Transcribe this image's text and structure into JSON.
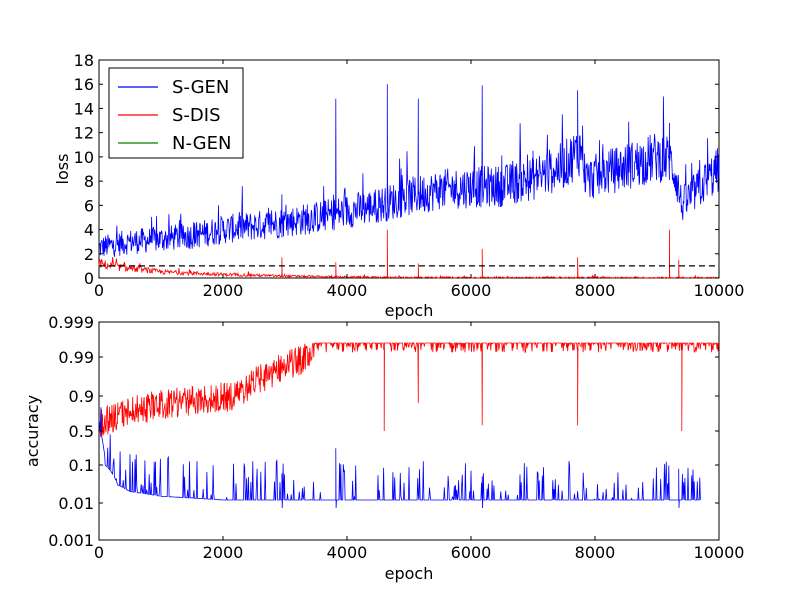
{
  "colors": {
    "s_gen": "#0000ff",
    "s_dis": "#ff0000",
    "n_gen": "#008000",
    "reference": "#000000"
  },
  "chart_data": [
    {
      "type": "line",
      "xlabel": "epoch",
      "ylabel": "loss",
      "xlim": [
        0,
        10000
      ],
      "ylim": [
        0,
        18
      ],
      "xticks": [
        "0",
        "2000",
        "4000",
        "6000",
        "8000",
        "10000"
      ],
      "yticks": [
        "0",
        "2",
        "4",
        "6",
        "8",
        "10",
        "12",
        "14",
        "16",
        "18"
      ],
      "grid": false,
      "legend_position": "top-left",
      "series": [
        {
          "name": "S-GEN",
          "color": "#0000ff",
          "x": [
            0,
            500,
            1000,
            1500,
            2000,
            2500,
            3000,
            3500,
            4000,
            4500,
            5000,
            5500,
            6000,
            6500,
            7000,
            7500,
            7800,
            7850,
            8000,
            8500,
            9000,
            9200,
            9300,
            9400,
            10000
          ],
          "y": [
            2.5,
            3.0,
            3.2,
            3.5,
            4.0,
            4.3,
            4.6,
            5.0,
            5.5,
            6.0,
            6.7,
            7.3,
            7.5,
            7.6,
            8.2,
            9.3,
            10.8,
            8.0,
            8.4,
            9.2,
            10.0,
            9.8,
            8.5,
            6.0,
            9.0
          ],
          "spikes": [
            {
              "x": 2950,
              "y": 6.9
            },
            {
              "x": 3820,
              "y": 14.8
            },
            {
              "x": 4650,
              "y": 16.0
            },
            {
              "x": 5150,
              "y": 14.8
            },
            {
              "x": 6180,
              "y": 15.9
            },
            {
              "x": 7000,
              "y": 10.5
            },
            {
              "x": 7720,
              "y": 15.5
            },
            {
              "x": 9200,
              "y": 12.8
            }
          ]
        },
        {
          "name": "S-DIS",
          "color": "#ff0000",
          "x": [
            0,
            300,
            1000,
            2000,
            3000,
            4000,
            5000,
            6000,
            7000,
            8000,
            9000,
            10000
          ],
          "y": [
            1.2,
            0.9,
            0.5,
            0.3,
            0.15,
            0.08,
            0.05,
            0.04,
            0.03,
            0.03,
            0.02,
            0.02
          ],
          "spikes": [
            {
              "x": 2950,
              "y": 1.7
            },
            {
              "x": 3820,
              "y": 1.3
            },
            {
              "x": 4650,
              "y": 4.0
            },
            {
              "x": 5150,
              "y": 1.2
            },
            {
              "x": 6180,
              "y": 2.4
            },
            {
              "x": 7720,
              "y": 1.7
            },
            {
              "x": 9200,
              "y": 4.0
            },
            {
              "x": 9350,
              "y": 1.5
            }
          ]
        },
        {
          "name": "N-GEN",
          "color": "#008000",
          "x": [],
          "y": []
        }
      ],
      "reference_line": {
        "y": 1.0,
        "style": "dashed",
        "color": "#000000"
      }
    },
    {
      "type": "line",
      "xlabel": "epoch",
      "ylabel": "accuracy",
      "xlim": [
        0,
        10000
      ],
      "xticks": [
        "0",
        "2000",
        "4000",
        "6000",
        "8000",
        "10000"
      ],
      "yticks": [
        "0.001",
        "0.01",
        "0.1",
        "0.5",
        "0.9",
        "0.99",
        "0.999"
      ],
      "y_scale": "logit",
      "grid": false,
      "series": [
        {
          "color": "#ff0000",
          "x": [
            0,
            500,
            1000,
            1500,
            2000,
            2500,
            3000,
            3500,
            4000,
            10000
          ],
          "y": [
            0.55,
            0.7,
            0.78,
            0.83,
            0.88,
            0.93,
            0.97,
            0.995,
            0.995,
            0.995
          ],
          "dips": [
            {
              "x": 4600,
              "y": 0.5
            },
            {
              "x": 6180,
              "y": 0.55
            },
            {
              "x": 7720,
              "y": 0.55
            },
            {
              "x": 9400,
              "y": 0.5
            },
            {
              "x": 5150,
              "y": 0.8
            }
          ]
        },
        {
          "color": "#0000ff",
          "x": [
            0,
            100,
            300,
            500,
            1000,
            2000,
            3000,
            4000,
            5000,
            6000,
            7000,
            8000,
            9000,
            9700
          ],
          "y": [
            0.6,
            0.1,
            0.03,
            0.02,
            0.015,
            0.012,
            0.012,
            0.012,
            0.012,
            0.012,
            0.012,
            0.012,
            0.012,
            0.012
          ],
          "spikes": [
            {
              "x": 3820,
              "y": 0.22
            },
            {
              "x": 2950,
              "y": 0.06
            },
            {
              "x": 6180,
              "y": 0.05
            },
            {
              "x": 9350,
              "y": 0.08
            }
          ]
        }
      ]
    }
  ]
}
